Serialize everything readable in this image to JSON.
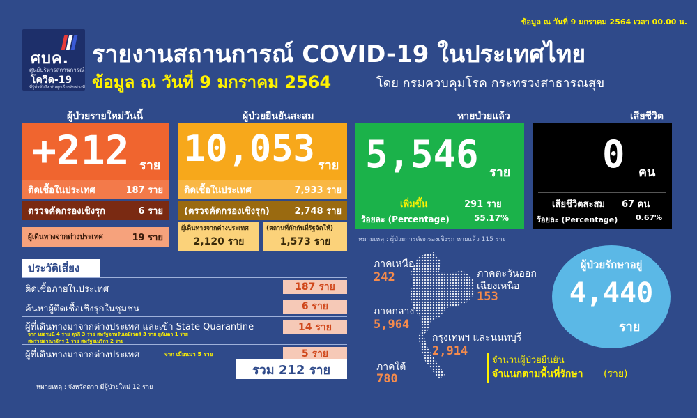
{
  "header": {
    "top_note": "ข้อมูล ณ วันที่ 9 มกราคม 2564 เวลา 00.00 น.",
    "title": "รายงานสถานการณ์ COVID-19 ในประเทศไทย",
    "subtitle_date": "ข้อมูล ณ วันที่ 9 มกราคม 2564",
    "subtitle_source": "โดย กรมควบคุมโรค กระทรวงสาธารณสุข",
    "logo_mark": "ศบค.",
    "logo_sub": "ศูนย์บริหารสถานการณ์",
    "logo_sub2": "โควิด-19",
    "logo_tagline": "ที่รู้ทั่วทั่วถึง ทันทุกเรื่องทันท่วงที"
  },
  "colors": {
    "background": "#2f4a8a",
    "new_cases": "#f0652f",
    "cumulative": "#f7a81b",
    "recovered": "#1bb24a",
    "deaths": "#000000",
    "hospital": "#5bb8e6",
    "highlight_yellow": "#fff200"
  },
  "new_cases": {
    "caption": "ผู้ป่วยรายใหม่วันนี้",
    "value": "+212",
    "unit": "ราย",
    "rows": [
      {
        "label": "ติดเชื้อในประเทศ",
        "value": "187 ราย"
      },
      {
        "label": "ตรวจคัดกรองเชิงรุก",
        "value": "6 ราย"
      },
      {
        "label": "ผู้เดินทางจากต่างประเทศ",
        "value": "19 ราย"
      }
    ]
  },
  "cumulative": {
    "caption": "ผู้ป่วยยืนยันสะสม",
    "value": "10,053",
    "unit": "ราย",
    "rows": [
      {
        "label": "ติดเชื้อในประเทศ",
        "value": "7,933 ราย"
      },
      {
        "label": "(ตรวจคัดกรองเชิงรุก)",
        "value": "2,748 ราย"
      }
    ],
    "sub_left_label": "ผู้เดินทางจากต่างประเทศ",
    "sub_left_value": "2,120 ราย",
    "sub_right_label": "(สถานที่กักกันที่รัฐจัดให้)",
    "sub_right_value": "1,573 ราย"
  },
  "recovered": {
    "caption": "หายป่วยแล้ว",
    "value": "5,546",
    "unit": "ราย",
    "increase_label": "เพิ่มขึ้น",
    "increase_value": "291 ราย",
    "pct_label": "ร้อยละ (Percentage)",
    "pct_value": "55.17%",
    "note": "หมายเหตุ : ผู้ป่วยการคัดกรองเชิงรุก หายแล้ว 115 ราย"
  },
  "deaths": {
    "caption": "เสียชีวิต",
    "value": "0",
    "unit": "คน",
    "cum_label": "เสียชีวิตสะสม",
    "cum_value": "67 คน",
    "pct_label": "ร้อยละ (Percentage)",
    "pct_value": "0.67%"
  },
  "risk": {
    "title": "ประวัติเสี่ยง",
    "items": [
      {
        "label": "ติดเชื้อภายในประเทศ",
        "value": "187 ราย",
        "detail": ""
      },
      {
        "label": "ค้นหาผู้ติดเชื้อเชิงรุกในชุมชน",
        "value": "6 ราย",
        "detail": ""
      },
      {
        "label": "ผู้ที่เดินทางมาจากต่างประเทศ และเข้า State Quarantine",
        "value": "14 ราย",
        "detail": "จาก เยอรมนี 4 ราย ตุรกี 3 ราย สหรัฐอาหรับเอมิเรตส์ 3 ราย ยูกันดา 1 ราย",
        "detail2": "สหราชอาณาจักร 1 ราย สหรัฐอเมริกา 2 ราย"
      },
      {
        "label": "ผู้ที่เดินทางมาจากต่างประเทศ",
        "value": "5 ราย",
        "detail": "จาก เมียนมา 5 ราย"
      }
    ],
    "total": "รวม 212 ราย",
    "note": "หมายเหตุ : จังหวัดตาก มีผู้ป่วยใหม่ 12 ราย"
  },
  "hospital": {
    "caption": "ผู้ป่วยรักษาอยู่",
    "value": "4,440",
    "unit": "ราย"
  },
  "regions": {
    "north": {
      "label": "ภาคเหนือ",
      "value": "242"
    },
    "northeast": {
      "label": "ภาคตะวันออกเฉียงเหนือ",
      "label1": "ภาคตะวันออก",
      "label2": "เฉียงเหนือ",
      "value": "153"
    },
    "central": {
      "label": "ภาคกลาง",
      "value": "5,964"
    },
    "bangkok": {
      "label": "กรุงเทพฯ และนนทบุรี",
      "value": "2,914"
    },
    "south": {
      "label": "ภาคใต้",
      "value": "780"
    },
    "legend1": "จำนวนผู้ป่วยยืนยัน",
    "legend2": "จำแนกตามพื้นที่รักษา",
    "legend_unit": "(ราย)"
  }
}
